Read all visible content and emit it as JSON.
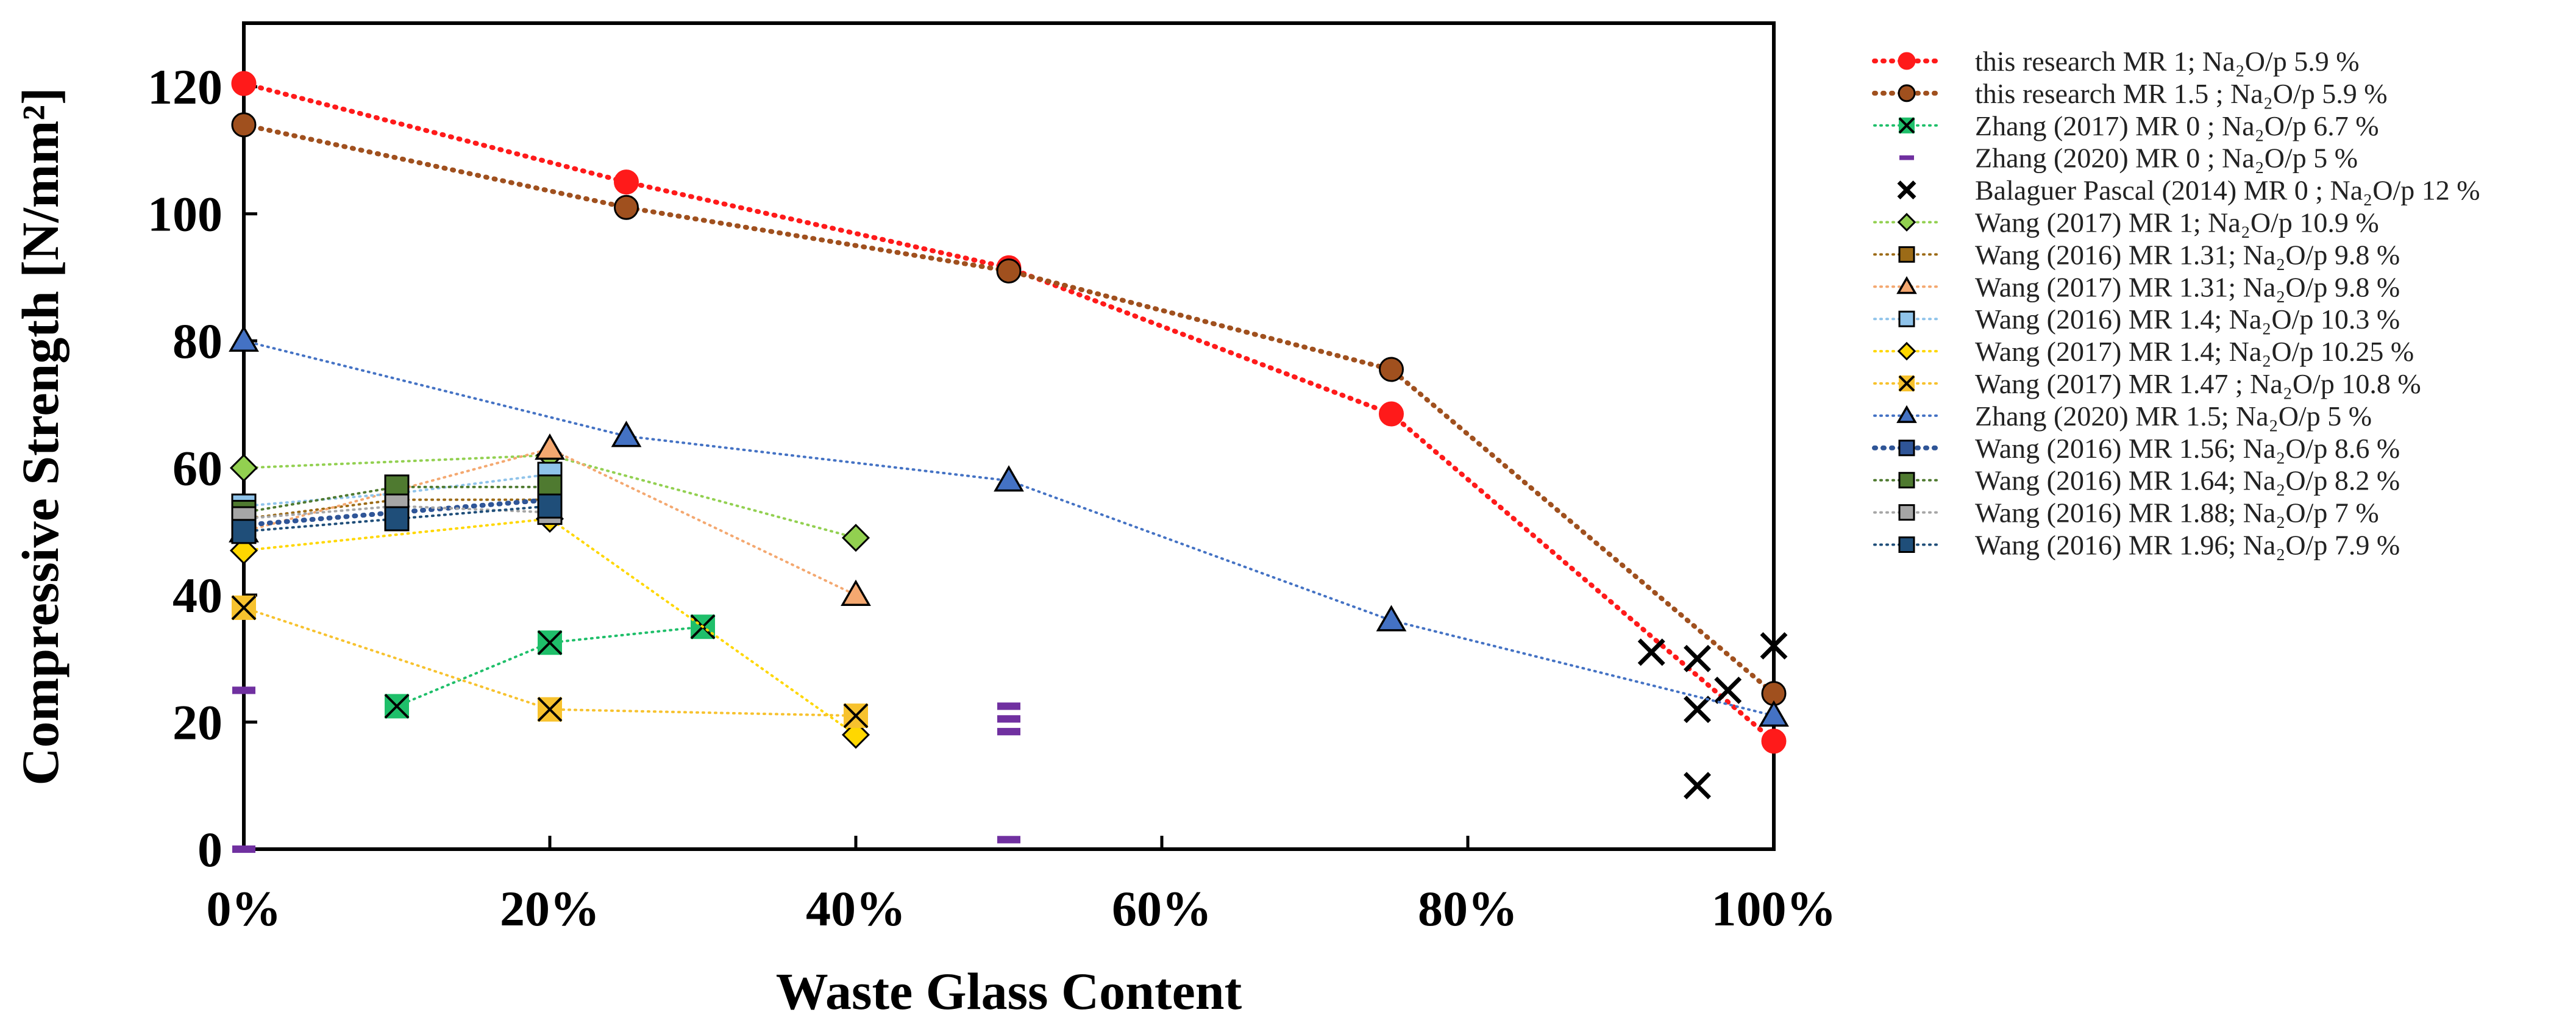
{
  "chart_data": {
    "type": "scatter",
    "title": "",
    "xlabel": "Waste Glass Content",
    "ylabel": "Compressive Strength  [N/mm²]",
    "xlim": [
      0,
      100
    ],
    "ylim": [
      0,
      130
    ],
    "x_ticks": [
      "0%",
      "20%",
      "40%",
      "60%",
      "80%",
      "100%"
    ],
    "y_ticks": [
      "0",
      "20",
      "40",
      "60",
      "80",
      "100",
      "120"
    ],
    "grid": false,
    "legend_position": "right",
    "series": [
      {
        "name": "this research MR 1; Na₂O/p 5.9 %",
        "color": "#ff1a1a",
        "marker": "circle",
        "line": "dotted-bold",
        "points": [
          [
            0,
            120.5
          ],
          [
            25,
            105
          ],
          [
            50,
            91.5
          ],
          [
            75,
            68.5
          ],
          [
            100,
            17
          ]
        ]
      },
      {
        "name": "this research MR 1.5 ; Na₂O/p 5.9 %",
        "color": "#a0501e",
        "marker": "circle",
        "line": "dotted-bold",
        "points": [
          [
            0,
            114
          ],
          [
            25,
            101
          ],
          [
            50,
            91
          ],
          [
            75,
            75.5
          ],
          [
            100,
            24.5
          ]
        ]
      },
      {
        "name": "Zhang (2017) MR 0 ; Na₂O/p 6.7 %",
        "color": "#1fbf6a",
        "marker": "xsquare",
        "line": "dotted",
        "points": [
          [
            10,
            22.5
          ],
          [
            20,
            32.5
          ],
          [
            30,
            35
          ]
        ]
      },
      {
        "name": "Zhang (2020) MR 0 ; Na₂O/p 5 %",
        "color": "#7030a0",
        "marker": "dash",
        "line": "none",
        "points": [
          [
            0,
            25
          ],
          [
            0,
            0
          ],
          [
            50,
            22.5
          ],
          [
            50,
            20.5
          ],
          [
            50,
            18.5
          ],
          [
            50,
            1.5
          ]
        ]
      },
      {
        "name": "Balaguer Pascal (2014) MR 0 ; Na₂O/p 12 %",
        "color": "#000000",
        "marker": "x",
        "line": "none",
        "points": [
          [
            92,
            31
          ],
          [
            95,
            30
          ],
          [
            95,
            22
          ],
          [
            95,
            10
          ],
          [
            97,
            25
          ],
          [
            100,
            32
          ]
        ]
      },
      {
        "name": "Wang (2017) MR 1; Na₂O/p 10.9 %",
        "color": "#92d050",
        "marker": "diamond",
        "line": "dotted",
        "points": [
          [
            0,
            60
          ],
          [
            20,
            62
          ],
          [
            40,
            49
          ]
        ]
      },
      {
        "name": "Wang (2016) MR 1.31; Na₂O/p 9.8 %",
        "color": "#9c6b17",
        "marker": "square",
        "line": "dotted",
        "points": [
          [
            0,
            52
          ],
          [
            10,
            55
          ],
          [
            20,
            55
          ]
        ]
      },
      {
        "name": "Wang (2017) MR 1.31; Na₂O/p 9.8 %",
        "color": "#f4a870",
        "marker": "triangle",
        "line": "dotted",
        "points": [
          [
            0,
            50
          ],
          [
            20,
            63
          ],
          [
            40,
            40
          ]
        ]
      },
      {
        "name": "Wang (2016) MR 1.4; Na₂O/p 10.3 %",
        "color": "#8fc3ea",
        "marker": "square",
        "line": "dotted",
        "points": [
          [
            0,
            54
          ],
          [
            10,
            56
          ],
          [
            20,
            59
          ]
        ]
      },
      {
        "name": "Wang (2017) MR 1.4; Na₂O/p 10.25 %",
        "color": "#ffd700",
        "marker": "diamond",
        "line": "dotted",
        "points": [
          [
            0,
            47
          ],
          [
            20,
            52
          ],
          [
            40,
            18
          ]
        ]
      },
      {
        "name": "Wang (2017) MR 1.47 ; Na₂O/p 10.8 %",
        "color": "#f7c22e",
        "marker": "xsquare",
        "line": "dotted",
        "points": [
          [
            0,
            38
          ],
          [
            20,
            22
          ],
          [
            40,
            21
          ]
        ]
      },
      {
        "name": "Zhang (2020) MR 1.5; Na₂O/p 5 %",
        "color": "#4472c4",
        "marker": "triangle",
        "line": "dotted",
        "points": [
          [
            0,
            80
          ],
          [
            25,
            65
          ],
          [
            50,
            58
          ],
          [
            75,
            36
          ],
          [
            100,
            21
          ]
        ]
      },
      {
        "name": "Wang (2016) MR 1.56; Na₂O/p 8.6 %",
        "color": "#2f5597",
        "marker": "square",
        "line": "dotted-bold",
        "points": [
          [
            0,
            51
          ],
          [
            10,
            53
          ],
          [
            20,
            55
          ]
        ]
      },
      {
        "name": "Wang (2016) MR 1.64; Na₂O/p 8.2 %",
        "color": "#4f7a30",
        "marker": "square",
        "line": "dotted",
        "points": [
          [
            0,
            53
          ],
          [
            10,
            57
          ],
          [
            20,
            57
          ]
        ]
      },
      {
        "name": "Wang (2016) MR 1.88; Na₂O/p 7 %",
        "color": "#a6a6a6",
        "marker": "square",
        "line": "dotted",
        "points": [
          [
            0,
            52
          ],
          [
            10,
            54
          ],
          [
            20,
            53
          ]
        ]
      },
      {
        "name": "Wang (2016) MR 1.96; Na₂O/p 7.9 %",
        "color": "#1f4e79",
        "marker": "square",
        "line": "dotted",
        "points": [
          [
            0,
            50
          ],
          [
            10,
            52
          ],
          [
            20,
            54
          ]
        ]
      }
    ]
  }
}
